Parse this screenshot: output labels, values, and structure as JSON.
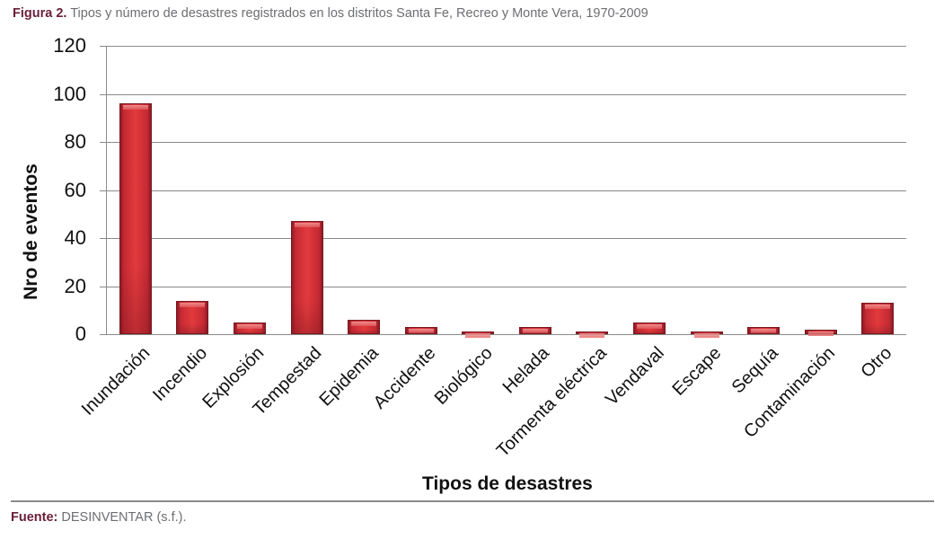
{
  "caption": {
    "label": "Figura 2.",
    "text": "Tipos y número de desastres registrados en los distritos Santa Fe, Recreo y Monte Vera, 1970-2009"
  },
  "source": {
    "label": "Fuente:",
    "text": "DESINVENTAR (s.f.)."
  },
  "chart_data": {
    "type": "bar",
    "title": "Tipos y número de desastres registrados en los distritos Santa Fe, Recreo y Monte Vera, 1970-2009",
    "xlabel": "Tipos de desastres",
    "ylabel": "Nro de eventos",
    "ylim": [
      0,
      120
    ],
    "yticks": [
      0,
      20,
      40,
      60,
      80,
      100,
      120
    ],
    "grid": true,
    "legend": null,
    "categories": [
      "Inundación",
      "Incendio",
      "Explosión",
      "Tempestad",
      "Epidemia",
      "Accidente",
      "Biológico",
      "Helada",
      "Tormenta eléctrica",
      "Vendaval",
      "Escape",
      "Sequía",
      "Contaminación",
      "Otro"
    ],
    "values": [
      96,
      14,
      5,
      47,
      6,
      3,
      1,
      3,
      1,
      5,
      1,
      3,
      2,
      13
    ],
    "bar_color": "#c8282f"
  }
}
